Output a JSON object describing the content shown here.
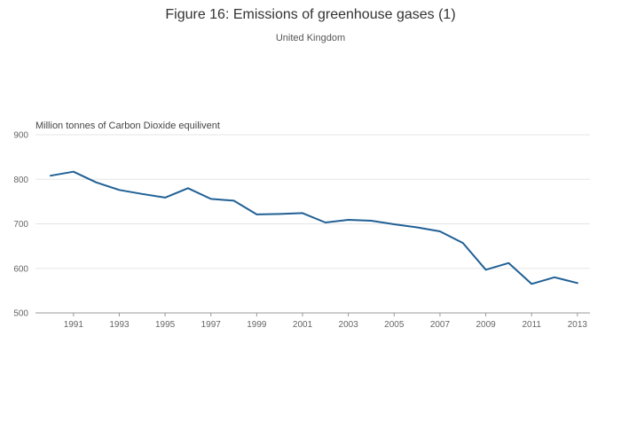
{
  "header": {
    "title": "Figure 16: Emissions of greenhouse gases (1)",
    "subtitle": "United Kingdom"
  },
  "chart_data": {
    "type": "line",
    "title": "Figure 16: Emissions of greenhouse gases (1)",
    "subtitle": "United Kingdom",
    "xlabel": "",
    "ylabel": "Million tonnes of Carbon Dioxide equilivent",
    "x": [
      1990,
      1991,
      1992,
      1993,
      1994,
      1995,
      1996,
      1997,
      1998,
      1999,
      2000,
      2001,
      2002,
      2003,
      2004,
      2005,
      2006,
      2007,
      2008,
      2009,
      2010,
      2011,
      2012,
      2013
    ],
    "values": [
      808,
      817,
      793,
      776,
      767,
      759,
      780,
      756,
      752,
      721,
      722,
      724,
      703,
      709,
      707,
      699,
      692,
      683,
      657,
      597,
      612,
      565,
      580,
      567
    ],
    "ylim": [
      500,
      900
    ],
    "yticks": [
      500,
      600,
      700,
      800,
      900
    ],
    "xticks": [
      1991,
      1993,
      1995,
      1997,
      1999,
      2001,
      2003,
      2005,
      2007,
      2009,
      2011,
      2013
    ],
    "grid": true,
    "legend": "none",
    "line_color": "#206095",
    "grid_color": "#e5e5e5",
    "axis_color": "#999999",
    "tick_label_color": "#666666",
    "ylabel_color": "#444444"
  }
}
